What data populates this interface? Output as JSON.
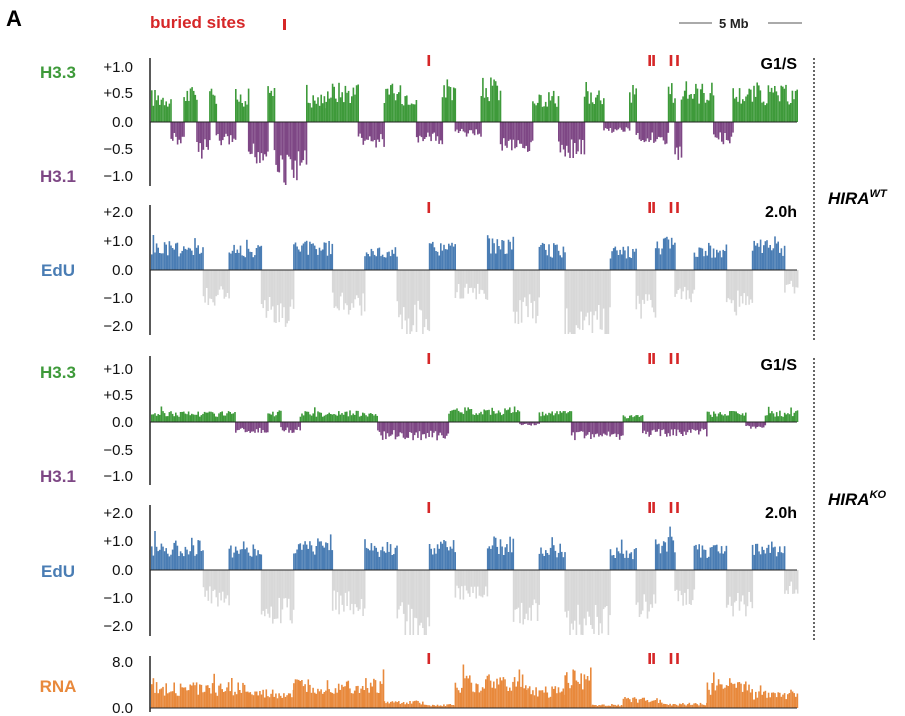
{
  "figure": {
    "panel_letter": "A",
    "buried_sites_label": "buried sites",
    "scale_bar_label": "5 Mb",
    "genotypes": [
      {
        "name": "HIRA",
        "superscript": "WT"
      },
      {
        "name": "HIRA",
        "superscript": "KO"
      }
    ]
  },
  "colors": {
    "h33": "#3e9a3a",
    "h31": "#7e4785",
    "edu_pos": "#4a7db4",
    "edu_neg": "#d8d8d8",
    "rna": "#e8893c",
    "buried": "#d62728",
    "axis": "#222222"
  },
  "chart_data": [
    {
      "type": "area",
      "track": "H3.3 / H3.1",
      "condition": "G1/S",
      "genotype": "HIRA WT",
      "pos_label": "H3.3",
      "neg_label": "H3.1",
      "y_ticks": [
        "+1.0",
        "+0.5",
        "0.0",
        "−0.5",
        "−1.0"
      ],
      "ylim": [
        -1.0,
        1.0
      ],
      "segments": [
        [
          0,
          3,
          0.45
        ],
        [
          3,
          5,
          -0.3
        ],
        [
          5,
          7,
          0.5
        ],
        [
          7,
          9,
          -0.5
        ],
        [
          9,
          10,
          0.45
        ],
        [
          10,
          13,
          -0.35
        ],
        [
          13,
          15,
          0.45
        ],
        [
          15,
          18,
          -0.6
        ],
        [
          18,
          19,
          0.5
        ],
        [
          19,
          24,
          -0.85
        ],
        [
          24,
          27,
          0.4
        ],
        [
          27,
          32,
          0.55
        ],
        [
          32,
          36,
          -0.35
        ],
        [
          36,
          41,
          0.5
        ],
        [
          41,
          45,
          -0.3
        ],
        [
          45,
          47,
          0.5
        ],
        [
          47,
          51,
          -0.2
        ],
        [
          51,
          54,
          0.6
        ],
        [
          54,
          59,
          -0.4
        ],
        [
          59,
          63,
          0.45
        ],
        [
          63,
          67,
          -0.5
        ],
        [
          67,
          70,
          0.5
        ],
        [
          70,
          74,
          -0.15
        ],
        [
          74,
          75,
          0.5
        ],
        [
          75,
          80,
          -0.3
        ],
        [
          80,
          81,
          0.55
        ],
        [
          81,
          82,
          -0.6
        ],
        [
          82,
          87,
          0.55
        ],
        [
          87,
          90,
          -0.3
        ],
        [
          90,
          100,
          0.5
        ]
      ]
    },
    {
      "type": "area",
      "track": "EdU",
      "condition": "2.0h",
      "genotype": "HIRA WT",
      "pos_label": "EdU",
      "y_ticks": [
        "+2.0",
        "+1.0",
        "0.0",
        "−1.0",
        "−2.0"
      ],
      "ylim": [
        -2.5,
        2.5
      ],
      "segments": [
        [
          0,
          8,
          1.0
        ],
        [
          8,
          12,
          -1.2
        ],
        [
          12,
          17,
          0.9
        ],
        [
          17,
          22,
          -1.9
        ],
        [
          22,
          28,
          1.0
        ],
        [
          28,
          33,
          -1.5
        ],
        [
          33,
          38,
          0.8
        ],
        [
          38,
          43,
          -2.3
        ],
        [
          43,
          47,
          1.0
        ],
        [
          47,
          52,
          -1.0
        ],
        [
          52,
          56,
          1.1
        ],
        [
          56,
          60,
          -1.8
        ],
        [
          60,
          64,
          0.9
        ],
        [
          64,
          71,
          -2.5
        ],
        [
          71,
          75,
          0.8
        ],
        [
          75,
          78,
          -1.6
        ],
        [
          78,
          81,
          1.1
        ],
        [
          81,
          84,
          -1.2
        ],
        [
          84,
          89,
          0.9
        ],
        [
          89,
          93,
          -1.5
        ],
        [
          93,
          98,
          1.0
        ],
        [
          98,
          100,
          -0.8
        ]
      ]
    },
    {
      "type": "area",
      "track": "H3.3 / H3.1",
      "condition": "G1/S",
      "genotype": "HIRA KO",
      "pos_label": "H3.3",
      "neg_label": "H3.1",
      "y_ticks": [
        "+1.0",
        "+0.5",
        "0.0",
        "−0.5",
        "−1.0"
      ],
      "ylim": [
        -1.0,
        1.0
      ],
      "segments": [
        [
          0,
          13,
          0.15
        ],
        [
          13,
          18,
          -0.15
        ],
        [
          18,
          20,
          0.15
        ],
        [
          20,
          23,
          -0.15
        ],
        [
          23,
          35,
          0.15
        ],
        [
          35,
          46,
          -0.25
        ],
        [
          46,
          57,
          0.2
        ],
        [
          57,
          60,
          -0.05
        ],
        [
          60,
          65,
          0.15
        ],
        [
          65,
          73,
          -0.25
        ],
        [
          73,
          76,
          0.1
        ],
        [
          76,
          86,
          -0.2
        ],
        [
          86,
          92,
          0.15
        ],
        [
          92,
          95,
          -0.1
        ],
        [
          95,
          100,
          0.15
        ]
      ]
    },
    {
      "type": "area",
      "track": "EdU",
      "condition": "2.0h",
      "genotype": "HIRA KO",
      "pos_label": "EdU",
      "y_ticks": [
        "+2.0",
        "+1.0",
        "0.0",
        "−1.0",
        "−2.0"
      ],
      "ylim": [
        -2.5,
        2.5
      ],
      "segments": [
        [
          0,
          8,
          1.0
        ],
        [
          8,
          12,
          -1.2
        ],
        [
          12,
          17,
          0.9
        ],
        [
          17,
          22,
          -1.9
        ],
        [
          22,
          28,
          1.0
        ],
        [
          28,
          33,
          -1.5
        ],
        [
          33,
          38,
          0.8
        ],
        [
          38,
          43,
          -2.3
        ],
        [
          43,
          47,
          1.0
        ],
        [
          47,
          52,
          -1.0
        ],
        [
          52,
          56,
          1.1
        ],
        [
          56,
          60,
          -1.8
        ],
        [
          60,
          64,
          0.9
        ],
        [
          64,
          71,
          -2.5
        ],
        [
          71,
          75,
          0.8
        ],
        [
          75,
          78,
          -1.6
        ],
        [
          78,
          81,
          1.1
        ],
        [
          81,
          84,
          -1.2
        ],
        [
          84,
          89,
          0.9
        ],
        [
          89,
          93,
          -1.5
        ],
        [
          93,
          98,
          1.0
        ],
        [
          98,
          100,
          -0.8
        ]
      ]
    },
    {
      "type": "area",
      "track": "RNA",
      "pos_label": "RNA",
      "y_ticks": [
        "8.0",
        "0.0"
      ],
      "ylim": [
        0,
        8.0
      ],
      "segments": [
        [
          0,
          15,
          3.5
        ],
        [
          15,
          22,
          2.5
        ],
        [
          22,
          36,
          4.0
        ],
        [
          36,
          42,
          1.0
        ],
        [
          42,
          47,
          0.5
        ],
        [
          47,
          58,
          4.5
        ],
        [
          58,
          64,
          3.0
        ],
        [
          64,
          68,
          5.5
        ],
        [
          68,
          73,
          0.5
        ],
        [
          73,
          79,
          1.5
        ],
        [
          79,
          86,
          0.7
        ],
        [
          86,
          93,
          4.0
        ],
        [
          93,
          100,
          2.5
        ]
      ]
    }
  ],
  "buried_site_positions": [
    43,
    77.2,
    77.8,
    80.5,
    81.5
  ]
}
